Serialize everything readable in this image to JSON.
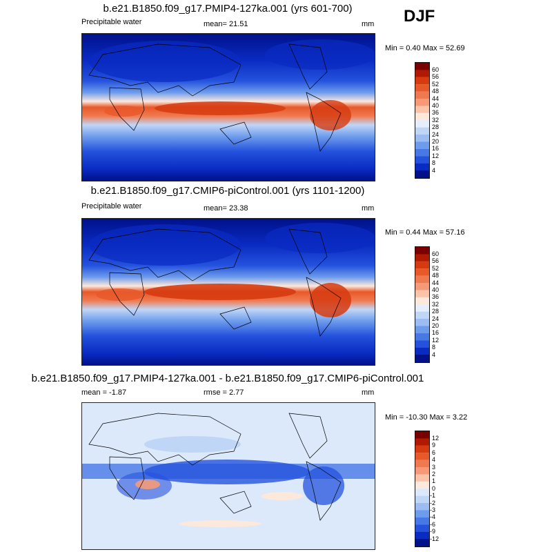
{
  "season": "DJF",
  "panels": [
    {
      "title": "b.e21.B1850.f09_g17.PMIP4-127ka.001 (yrs 601-700)",
      "left_label": "Precipitable water",
      "center_label": "mean=  21.51",
      "units": "mm",
      "minmax": "Min =   0.40 Max =  52.69",
      "type": "absolute"
    },
    {
      "title": "b.e21.B1850.f09_g17.CMIP6-piControl.001 (yrs 1101-1200)",
      "left_label": "Precipitable water",
      "center_label": "mean=  23.38",
      "units": "mm",
      "minmax": "Min =   0.44 Max =  57.16",
      "type": "absolute"
    },
    {
      "title": "b.e21.B1850.f09_g17.PMIP4-127ka.001 - b.e21.B1850.f09_g17.CMIP6-piControl.001",
      "left_label": "mean =  -1.87",
      "center_label": "rmse =   2.77",
      "units": "mm",
      "minmax": "Min = -10.30 Max =   3.22",
      "type": "difference"
    }
  ],
  "colorbar_abs": {
    "labels": [
      "60",
      "56",
      "52",
      "48",
      "44",
      "40",
      "36",
      "32",
      "28",
      "24",
      "20",
      "16",
      "12",
      "8",
      "4"
    ],
    "colors": [
      "#7a0000",
      "#b01a00",
      "#d63b10",
      "#e8592a",
      "#f07a50",
      "#f59a78",
      "#fbc3a8",
      "#fde8dc",
      "#e4eefc",
      "#c0d6f7",
      "#9bbdf3",
      "#6e9cec",
      "#4778e6",
      "#2452dd",
      "#0a2bc2",
      "#00118a"
    ]
  },
  "colorbar_diff": {
    "labels": [
      "12",
      "9",
      "6",
      "4",
      "3",
      "2",
      "1",
      "0",
      "-1",
      "-2",
      "-3",
      "-4",
      "-6",
      "-9",
      "-12"
    ],
    "colors": [
      "#7a0000",
      "#b01a00",
      "#d63b10",
      "#e8592a",
      "#f07a50",
      "#f59a78",
      "#fbc3a8",
      "#fde8dc",
      "#dce9fb",
      "#c0d6f7",
      "#9bbdf3",
      "#6e9cec",
      "#4778e6",
      "#2452dd",
      "#0a2bc2",
      "#00118a"
    ]
  }
}
